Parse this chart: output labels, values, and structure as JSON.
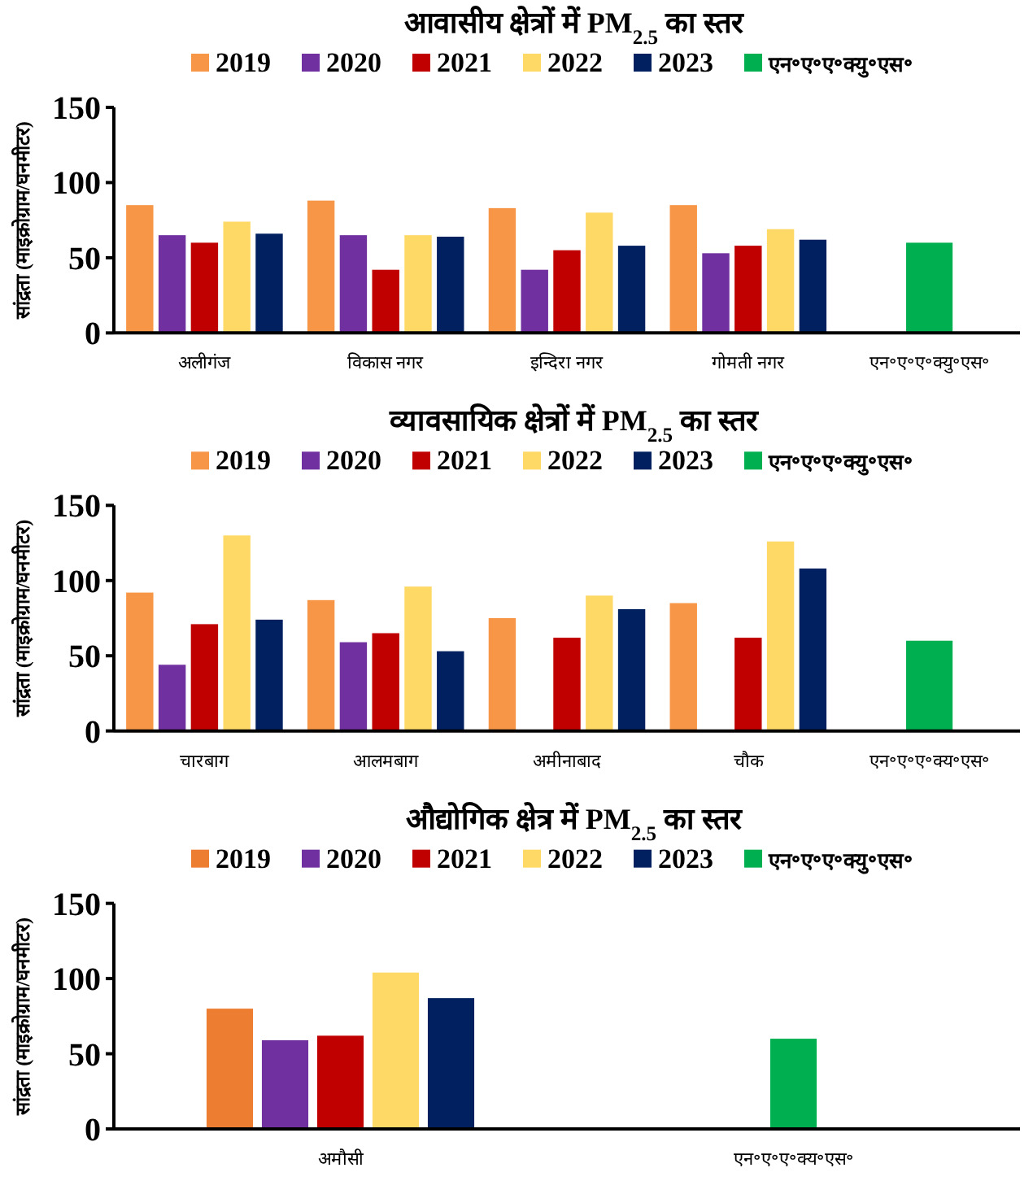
{
  "chart_data": [
    {
      "type": "bar",
      "title": "आवासीय क्षेत्रों में PM$_{2.5}$ का स्तर",
      "ylabel": "सांद्रता (माइक्रोग्राम/घनमीटर)",
      "categories": [
        "अलीगंज",
        "विकास नगर",
        "इन्दिरा नगर",
        "गोमती नगर",
        "एन॰ए॰ए॰क्यु॰एस॰"
      ],
      "ylim": [
        0,
        150
      ],
      "yticks": [
        0,
        50,
        100,
        150
      ],
      "legend": "top",
      "grid": false,
      "series": [
        {
          "name": "2019",
          "color": "#f79646",
          "values": [
            85,
            88,
            83,
            85,
            null
          ]
        },
        {
          "name": "2020",
          "color": "#7030a0",
          "values": [
            65,
            65,
            42,
            53,
            null
          ]
        },
        {
          "name": "2021",
          "color": "#c00000",
          "values": [
            60,
            42,
            55,
            58,
            null
          ]
        },
        {
          "name": "2022",
          "color": "#ffd966",
          "values": [
            74,
            65,
            80,
            69,
            null
          ]
        },
        {
          "name": "2023",
          "color": "#002060",
          "values": [
            66,
            64,
            58,
            62,
            null
          ]
        },
        {
          "name": "एन॰ए॰ए॰क्यु॰एस॰",
          "color": "#00b050",
          "values": [
            null,
            null,
            null,
            null,
            60
          ]
        }
      ]
    },
    {
      "type": "bar",
      "title": "व्यावसायिक क्षेत्रों में PM$_{2.5}$ का स्तर",
      "ylabel": "सांद्रता (माइक्रोग्राम/घनमीटर)",
      "categories": [
        "चारबाग",
        "आलमबाग",
        "अमीनाबाद",
        "चौक",
        "एन॰ए॰ए॰क्य॰एस॰"
      ],
      "ylim": [
        0,
        150
      ],
      "yticks": [
        0,
        50,
        100,
        150
      ],
      "legend": "top",
      "grid": false,
      "series": [
        {
          "name": "2019",
          "color": "#f79646",
          "values": [
            92,
            87,
            75,
            85,
            null
          ]
        },
        {
          "name": "2020",
          "color": "#7030a0",
          "values": [
            44,
            59,
            null,
            null,
            null
          ]
        },
        {
          "name": "2021",
          "color": "#c00000",
          "values": [
            71,
            65,
            62,
            62,
            null
          ]
        },
        {
          "name": "2022",
          "color": "#ffd966",
          "values": [
            130,
            96,
            90,
            126,
            null
          ]
        },
        {
          "name": "2023",
          "color": "#002060",
          "values": [
            74,
            53,
            81,
            108,
            null
          ]
        },
        {
          "name": "एन॰ए॰ए॰क्यु॰एस॰",
          "color": "#00b050",
          "values": [
            null,
            null,
            null,
            null,
            60
          ]
        }
      ]
    },
    {
      "type": "bar",
      "title": "औद्योगिक क्षेत्र में PM$_{2.5}$ का स्तर",
      "ylabel": "सांद्रता (माइक्रोग्राम/घनमीटर)",
      "categories": [
        "अमौसी",
        "एन॰ए॰ए॰क्य॰एस॰"
      ],
      "ylim": [
        0,
        150
      ],
      "yticks": [
        0,
        50,
        100,
        150
      ],
      "legend": "top",
      "grid": false,
      "series": [
        {
          "name": "2019",
          "color": "#ed7d31",
          "values": [
            80,
            null
          ]
        },
        {
          "name": "2020",
          "color": "#7030a0",
          "values": [
            59,
            null
          ]
        },
        {
          "name": "2021",
          "color": "#c00000",
          "values": [
            62,
            null
          ]
        },
        {
          "name": "2022",
          "color": "#ffd966",
          "values": [
            104,
            null
          ]
        },
        {
          "name": "2023",
          "color": "#002060",
          "values": [
            87,
            null
          ]
        },
        {
          "name": "एन॰ए॰ए॰क्यु॰एस॰",
          "color": "#00b050",
          "values": [
            null,
            60
          ]
        }
      ]
    }
  ]
}
